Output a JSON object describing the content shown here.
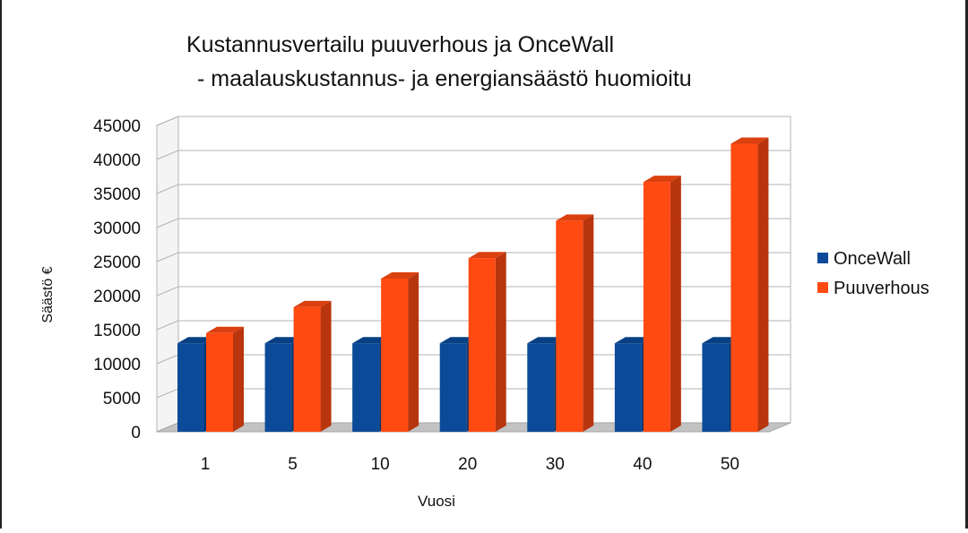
{
  "chart_data": {
    "type": "bar",
    "title": "Kustannusvertailu  puuverhous ja OnceWall",
    "subtitle": "- maalauskustannus- ja energiansäästö huomioitu",
    "xlabel": "Vuosi",
    "ylabel": "Säästö €",
    "categories": [
      "1",
      "5",
      "10",
      "20",
      "30",
      "40",
      "50"
    ],
    "ylim": [
      0,
      45000
    ],
    "yticks": [
      "0",
      "5000",
      "10000",
      "15000",
      "20000",
      "25000",
      "30000",
      "35000",
      "40000",
      "45000"
    ],
    "grid": true,
    "legend": "right",
    "series": [
      {
        "name": "OnceWall",
        "color": "#0b4a98",
        "values": [
          13000,
          13000,
          13000,
          13000,
          13000,
          13000,
          13000
        ]
      },
      {
        "name": "Puuverhous",
        "color": "#ff4a12",
        "values": [
          14500,
          18300,
          22500,
          25500,
          31000,
          36700,
          42300
        ]
      }
    ]
  }
}
